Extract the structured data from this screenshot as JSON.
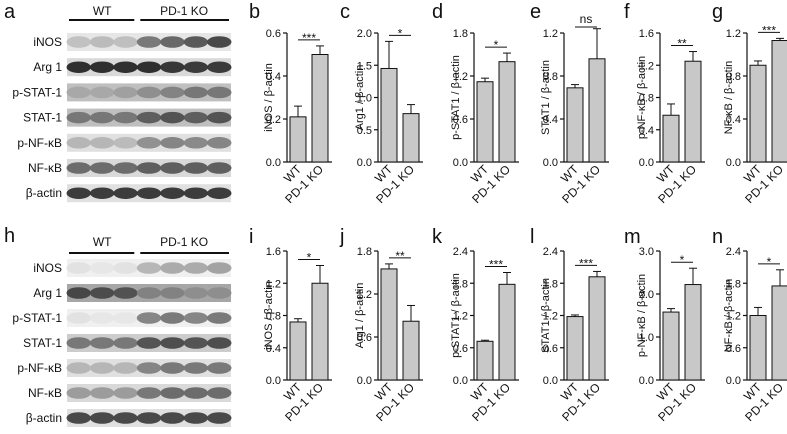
{
  "figure": {
    "blots": [
      {
        "letter": "a",
        "groups": [
          "WT",
          "PD-1 KO"
        ],
        "rows": [
          {
            "label": "iNOS",
            "wt": [
              0.25,
              0.28,
              0.26
            ],
            "ko": [
              0.55,
              0.62,
              0.68,
              0.75
            ],
            "bg": 0.1
          },
          {
            "label": "Arg 1",
            "wt": [
              0.85,
              0.85,
              0.85
            ],
            "ko": [
              0.85,
              0.82,
              0.8,
              0.8
            ],
            "bg": 0.15
          },
          {
            "label": "p-STAT-1",
            "wt": [
              0.35,
              0.35,
              0.38
            ],
            "ko": [
              0.45,
              0.5,
              0.55,
              0.55
            ],
            "bg": 0.25
          },
          {
            "label": "STAT-1",
            "wt": [
              0.55,
              0.55,
              0.55
            ],
            "ko": [
              0.65,
              0.7,
              0.65,
              0.7
            ],
            "bg": 0.25
          },
          {
            "label": "p-NF-κB",
            "wt": [
              0.3,
              0.3,
              0.28
            ],
            "ko": [
              0.45,
              0.5,
              0.48,
              0.5
            ],
            "bg": 0.12
          },
          {
            "label": "NF-κB",
            "wt": [
              0.6,
              0.6,
              0.6
            ],
            "ko": [
              0.65,
              0.65,
              0.65,
              0.65
            ],
            "bg": 0.15
          },
          {
            "label": "β-actin",
            "wt": [
              0.8,
              0.8,
              0.8
            ],
            "ko": [
              0.8,
              0.8,
              0.8,
              0.8
            ],
            "bg": 0.12
          }
        ]
      },
      {
        "letter": "h",
        "groups": [
          "WT",
          "PD-1 KO"
        ],
        "rows": [
          {
            "label": "iNOS",
            "wt": [
              0.12,
              0.1,
              0.12
            ],
            "ko": [
              0.3,
              0.35,
              0.35,
              0.38
            ],
            "bg": 0.06
          },
          {
            "label": "Arg 1",
            "wt": [
              0.75,
              0.72,
              0.7
            ],
            "ko": [
              0.5,
              0.5,
              0.45,
              0.45
            ],
            "bg": 0.35
          },
          {
            "label": "p-STAT-1",
            "wt": [
              0.12,
              0.1,
              0.1
            ],
            "ko": [
              0.5,
              0.55,
              0.5,
              0.55
            ],
            "bg": 0.06
          },
          {
            "label": "STAT-1",
            "wt": [
              0.55,
              0.55,
              0.55
            ],
            "ko": [
              0.7,
              0.72,
              0.7,
              0.72
            ],
            "bg": 0.2
          },
          {
            "label": "p-NF-κB",
            "wt": [
              0.3,
              0.3,
              0.3
            ],
            "ko": [
              0.5,
              0.55,
              0.55,
              0.55
            ],
            "bg": 0.12
          },
          {
            "label": "NF-κB",
            "wt": [
              0.4,
              0.4,
              0.4
            ],
            "ko": [
              0.55,
              0.6,
              0.6,
              0.6
            ],
            "bg": 0.15
          },
          {
            "label": "β-actin",
            "wt": [
              0.75,
              0.75,
              0.75
            ],
            "ko": [
              0.75,
              0.75,
              0.75,
              0.75
            ],
            "bg": 0.12
          }
        ]
      }
    ]
  },
  "chart_data": [
    {
      "letter": "b",
      "type": "bar",
      "categories": [
        "WT",
        "PD-1 KO"
      ],
      "values": [
        0.21,
        0.5
      ],
      "errors": [
        0.05,
        0.04
      ],
      "ylabel": "iNOS / β-actin",
      "ylim": [
        0,
        0.6
      ],
      "ticks": [
        0.0,
        0.2,
        0.4,
        0.6
      ],
      "sig": "***"
    },
    {
      "letter": "c",
      "type": "bar",
      "categories": [
        "WT",
        "PD-1 KO"
      ],
      "values": [
        1.45,
        0.75
      ],
      "errors": [
        0.42,
        0.14
      ],
      "ylabel": "Arg1 / β-actin",
      "ylim": [
        0,
        2.0
      ],
      "ticks": [
        0.0,
        0.5,
        1.0,
        1.5,
        2.0
      ],
      "sig": "*"
    },
    {
      "letter": "d",
      "type": "bar",
      "categories": [
        "WT",
        "PD-1 KO"
      ],
      "values": [
        1.12,
        1.4
      ],
      "errors": [
        0.05,
        0.12
      ],
      "ylabel": "p-STAT1 / β-actin",
      "ylim": [
        0,
        1.8
      ],
      "ticks": [
        0.0,
        0.6,
        1.2,
        1.8
      ],
      "sig": "*"
    },
    {
      "letter": "e",
      "type": "bar",
      "categories": [
        "WT",
        "PD-1 KO"
      ],
      "values": [
        0.69,
        0.96
      ],
      "errors": [
        0.03,
        0.28
      ],
      "ylabel": "STAT1 / β-actin",
      "ylim": [
        0,
        1.2
      ],
      "ticks": [
        0.0,
        0.4,
        0.8,
        1.2
      ],
      "sig": "ns"
    },
    {
      "letter": "f",
      "type": "bar",
      "categories": [
        "WT",
        "PD-1 KO"
      ],
      "values": [
        0.58,
        1.25
      ],
      "errors": [
        0.14,
        0.12
      ],
      "ylabel": "p-NF-κB / β-actin",
      "ylim": [
        0,
        1.6
      ],
      "ticks": [
        0.0,
        0.4,
        0.8,
        1.2,
        1.6
      ],
      "sig": "**"
    },
    {
      "letter": "g",
      "type": "bar",
      "categories": [
        "WT",
        "PD-1 KO"
      ],
      "values": [
        0.9,
        1.13
      ],
      "errors": [
        0.04,
        0.02
      ],
      "ylabel": "NF-κB / β-actin",
      "ylim": [
        0,
        1.2
      ],
      "ticks": [
        0.0,
        0.4,
        0.8,
        1.2
      ],
      "sig": "***"
    },
    {
      "letter": "i",
      "type": "bar",
      "categories": [
        "WT",
        "PD-1 KO"
      ],
      "values": [
        0.72,
        1.2
      ],
      "errors": [
        0.04,
        0.22
      ],
      "ylabel": "iNOS / β-actin",
      "ylim": [
        0,
        1.6
      ],
      "ticks": [
        0.0,
        0.4,
        0.8,
        1.2,
        1.6
      ],
      "sig": "*"
    },
    {
      "letter": "j",
      "type": "bar",
      "categories": [
        "WT",
        "PD-1 KO"
      ],
      "values": [
        1.55,
        0.82
      ],
      "errors": [
        0.07,
        0.22
      ],
      "ylabel": "Arg1 / β-actin",
      "ylim": [
        0,
        1.8
      ],
      "ticks": [
        0.0,
        0.6,
        1.2,
        1.8
      ],
      "sig": "**"
    },
    {
      "letter": "k",
      "type": "bar",
      "categories": [
        "WT",
        "PD-1 KO"
      ],
      "values": [
        0.72,
        1.78
      ],
      "errors": [
        0.02,
        0.22
      ],
      "ylabel": "p-STAT1 / β-actin",
      "ylim": [
        0,
        2.4
      ],
      "ticks": [
        0.0,
        0.6,
        1.2,
        1.8,
        2.4
      ],
      "sig": "***"
    },
    {
      "letter": "l",
      "type": "bar",
      "categories": [
        "WT",
        "PD-1 KO"
      ],
      "values": [
        1.18,
        1.92
      ],
      "errors": [
        0.03,
        0.1
      ],
      "ylabel": "STAT1 / β-actin",
      "ylim": [
        0,
        2.4
      ],
      "ticks": [
        0.0,
        0.6,
        1.2,
        1.8,
        2.4
      ],
      "sig": "***"
    },
    {
      "letter": "m",
      "type": "bar",
      "categories": [
        "WT",
        "PD-1 KO"
      ],
      "values": [
        1.58,
        2.22
      ],
      "errors": [
        0.08,
        0.38
      ],
      "ylabel": "p-NF-κB / β-actin",
      "ylim": [
        0,
        3.0
      ],
      "ticks": [
        0.0,
        1.0,
        2.0,
        3.0
      ],
      "sig": "*"
    },
    {
      "letter": "n",
      "type": "bar",
      "categories": [
        "WT",
        "PD-1 KO"
      ],
      "values": [
        1.2,
        1.75
      ],
      "errors": [
        0.15,
        0.3
      ],
      "ylabel": "NF-κB / β-actin",
      "ylim": [
        0,
        2.4
      ],
      "ticks": [
        0.0,
        0.6,
        1.2,
        1.8,
        2.4
      ],
      "sig": "*"
    }
  ]
}
